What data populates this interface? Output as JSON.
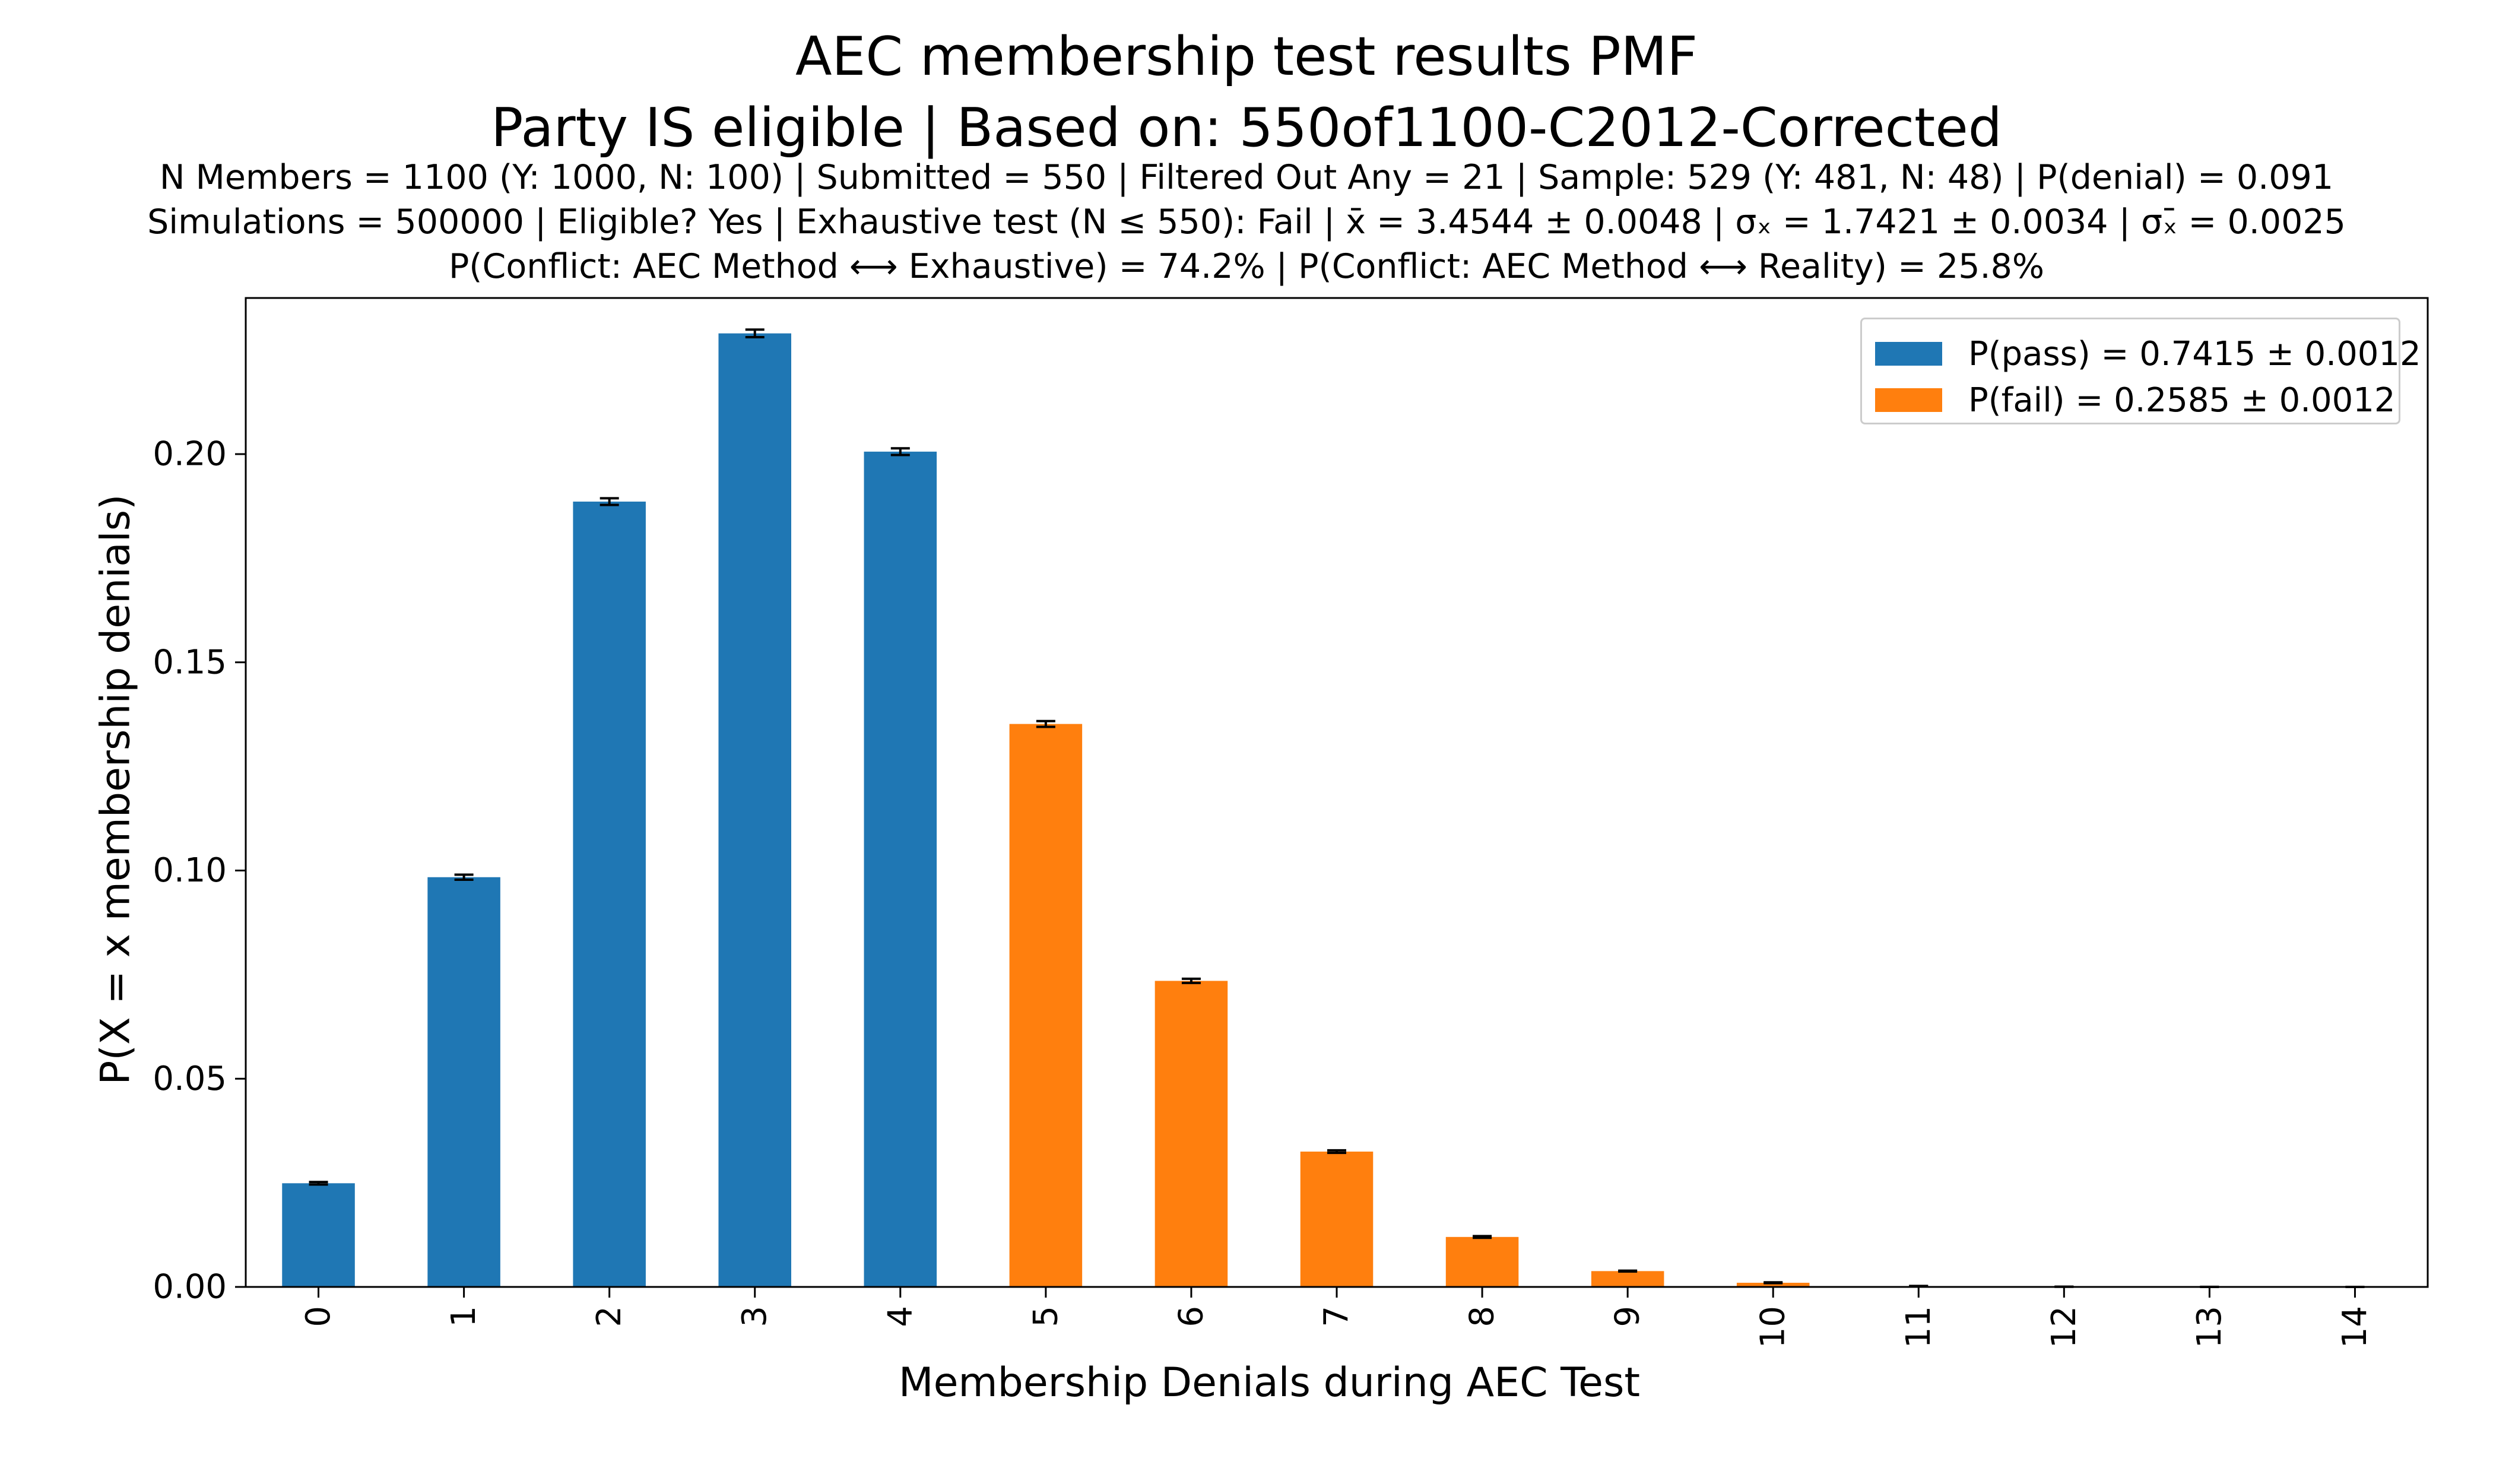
{
  "chart_data": {
    "type": "bar",
    "title": [
      "AEC membership test results PMF",
      "Party IS eligible | Based on: 550of1100-C2012-Corrected"
    ],
    "subtitle": [
      "N Members = 1100 (Y: 1000, N: 100) | Submitted = 550 | Filtered Out Any = 21 | Sample: 529 (Y: 481, N: 48) | P(denial) = 0.091",
      "Simulations = 500000 | Eligible? Yes | Exhaustive test (N ≤ 550): Fail | x̄ = 3.4544 ± 0.0048 | σₓ = 1.7421 ± 0.0034 | σₓ̄ = 0.0025",
      "P(Conflict: AEC Method ⟷ Exhaustive) = 74.2% | P(Conflict: AEC Method ⟷ Reality) = 25.8%"
    ],
    "xlabel": "Membership Denials during AEC Test",
    "ylabel": "P(X = x membership denials)",
    "categories": [
      "0",
      "1",
      "2",
      "3",
      "4",
      "5",
      "6",
      "7",
      "8",
      "9",
      "10",
      "11",
      "12",
      "13",
      "14"
    ],
    "values": [
      0.0249,
      0.0984,
      0.1886,
      0.229,
      0.2006,
      0.1352,
      0.0735,
      0.0325,
      0.012,
      0.0038,
      0.001,
      0.0002,
      4e-05,
      1e-05,
      2e-06
    ],
    "errors": [
      0.0003,
      0.0006,
      0.0008,
      0.0009,
      0.0008,
      0.0007,
      0.0005,
      0.0003,
      0.0002,
      0.0001,
      0.0001,
      3e-05,
      1e-05,
      5e-06,
      2e-06
    ],
    "groups": [
      "pass",
      "pass",
      "pass",
      "pass",
      "pass",
      "fail",
      "fail",
      "fail",
      "fail",
      "fail",
      "fail",
      "fail",
      "fail",
      "fail",
      "fail"
    ],
    "ylim": [
      0,
      0.2375
    ],
    "yticks": [
      0.0,
      0.05,
      0.1,
      0.15,
      0.2
    ],
    "ytick_labels": [
      "0.00",
      "0.05",
      "0.10",
      "0.15",
      "0.20"
    ],
    "legend": {
      "position": "top-right",
      "entries": [
        {
          "key": "pass",
          "label": "P(pass) = 0.7415 ± 0.0012",
          "color": "#1f77b4"
        },
        {
          "key": "fail",
          "label": "P(fail) = 0.2585 ± 0.0012",
          "color": "#ff7f0e"
        }
      ]
    },
    "grid": false,
    "colors": {
      "pass": "#1f77b4",
      "fail": "#ff7f0e",
      "error_bar": "#000000",
      "axis": "#000000"
    }
  }
}
